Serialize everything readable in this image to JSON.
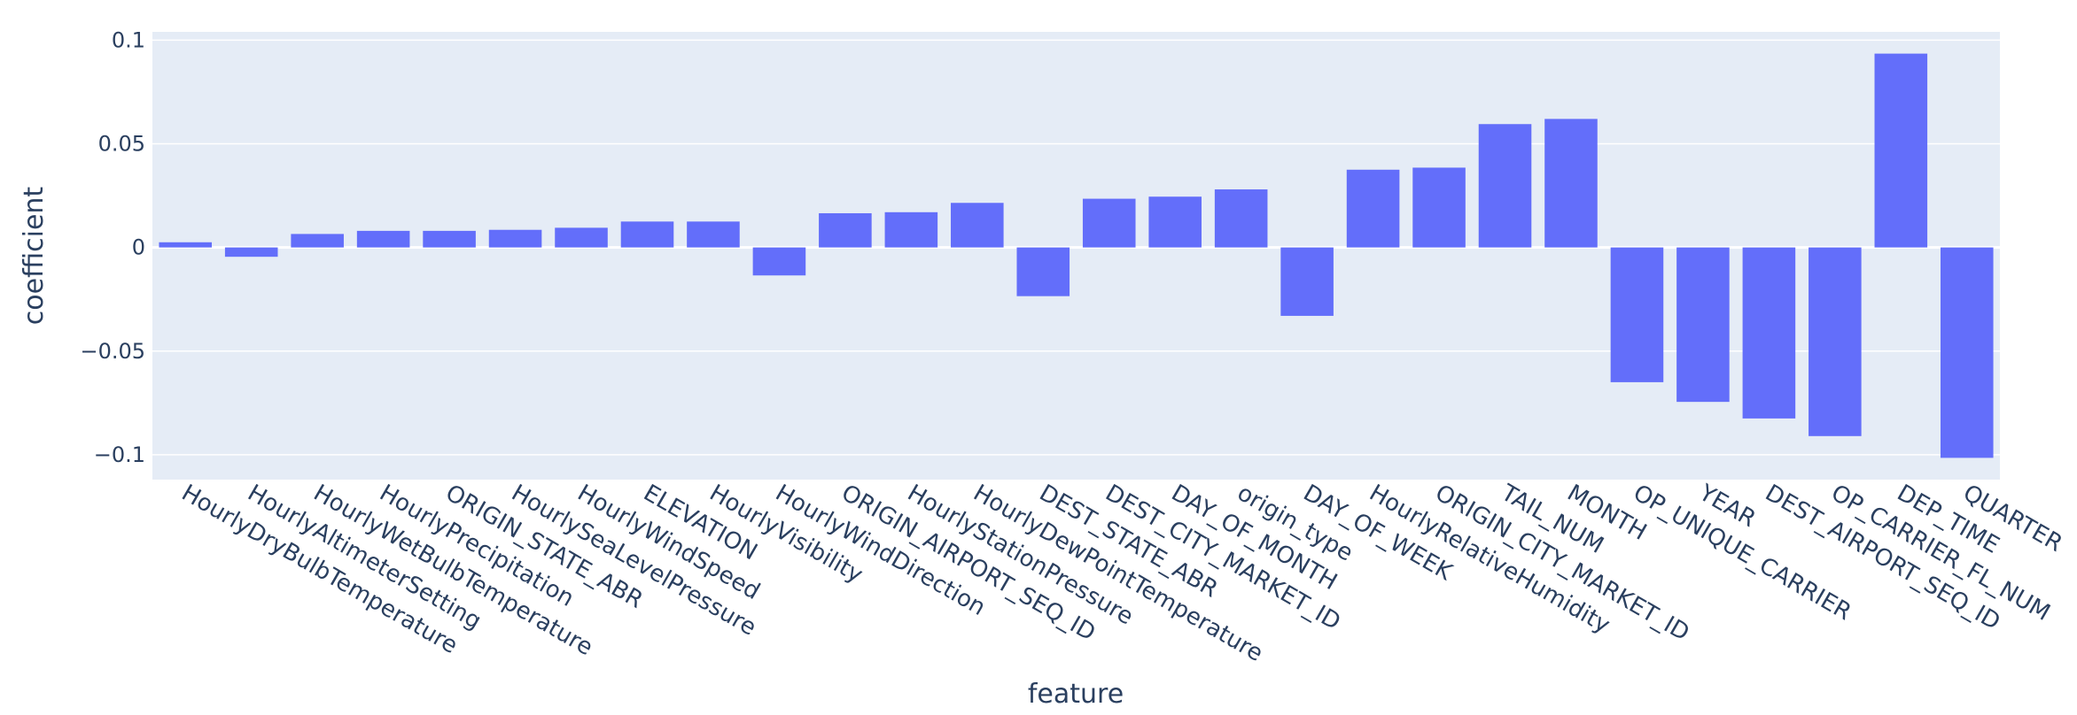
{
  "chart_data": {
    "type": "bar",
    "xlabel": "feature",
    "ylabel": "coefficient",
    "ylim": [
      -0.112,
      0.104
    ],
    "yticks": [
      0.1,
      0.05,
      0,
      -0.05,
      -0.1
    ],
    "ytick_labels": [
      "0.1",
      "0.05",
      "0",
      "−0.05",
      "−0.1"
    ],
    "grid": true,
    "bar_color": "#636efa",
    "plot_bg": "#e5ecf6",
    "text_color": "#2a3f5f",
    "categories": [
      "HourlyDryBulbTemperature",
      "HourlyAltimeterSetting",
      "HourlyWetBulbTemperature",
      "HourlyPrecipitation",
      "ORIGIN_STATE_ABR",
      "HourlySeaLevelPressure",
      "HourlyWindSpeed",
      "ELEVATION",
      "HourlyVisibility",
      "HourlyWindDirection",
      "ORIGIN_AIRPORT_SEQ_ID",
      "HourlyStationPressure",
      "HourlyDewPointTemperature",
      "DEST_STATE_ABR",
      "DEST_CITY_MARKET_ID",
      "DAY_OF_MONTH",
      "origin_type",
      "DAY_OF_WEEK",
      "HourlyRelativeHumidity",
      "ORIGIN_CITY_MARKET_ID",
      "TAIL_NUM",
      "MONTH",
      "OP_UNIQUE_CARRIER",
      "YEAR",
      "DEST_AIRPORT_SEQ_ID",
      "OP_CARRIER_FL_NUM",
      "DEP_TIME",
      "QUARTER"
    ],
    "values": [
      0.0025,
      -0.0045,
      0.0065,
      0.008,
      0.008,
      0.0085,
      0.0095,
      0.0125,
      0.0125,
      -0.0135,
      0.0165,
      0.017,
      0.0215,
      -0.0235,
      0.0235,
      0.0245,
      0.028,
      -0.033,
      0.0375,
      0.0385,
      0.0595,
      0.062,
      -0.065,
      -0.0745,
      -0.0825,
      -0.091,
      0.0935,
      -0.1015
    ]
  }
}
